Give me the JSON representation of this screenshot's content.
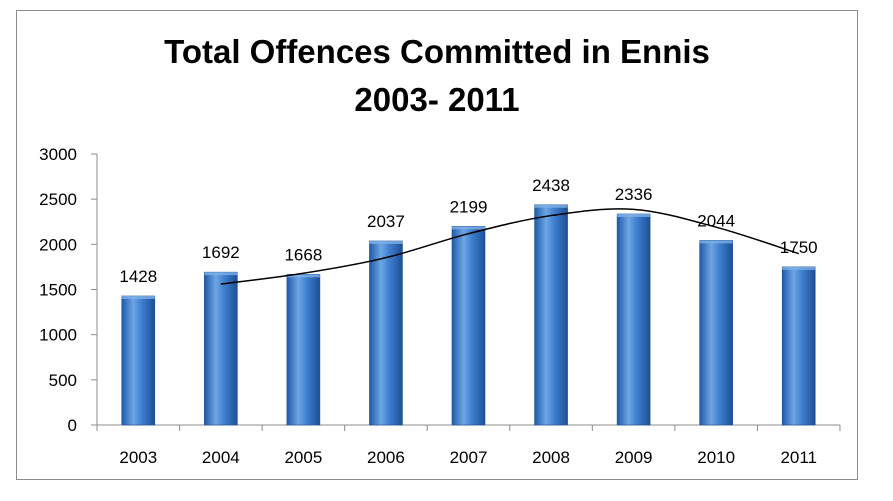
{
  "chart_data": {
    "type": "bar",
    "title_lines": [
      "Total Offences Committed in Ennis",
      "2003- 2011"
    ],
    "categories": [
      "2003",
      "2004",
      "2005",
      "2006",
      "2007",
      "2008",
      "2009",
      "2010",
      "2011"
    ],
    "values": [
      1428,
      1692,
      1668,
      2037,
      2199,
      2438,
      2336,
      2044,
      1750
    ],
    "data_labels": [
      "1428",
      "1692",
      "1668",
      "2037",
      "2199",
      "2438",
      "2336",
      "2044",
      "1750"
    ],
    "ylim": [
      0,
      3000
    ],
    "yticks": [
      0,
      500,
      1000,
      1500,
      2000,
      2500,
      3000
    ],
    "ytick_labels": [
      "0",
      "500",
      "1000",
      "1500",
      "2000",
      "2500",
      "3000"
    ],
    "trendline": {
      "type": "moving-average",
      "period": 2
    },
    "grid": false,
    "legend": "none",
    "colors": {
      "bar_light": "#7fb0e6",
      "bar_main": "#3f7fcf",
      "bar_dark": "#1f5aa8",
      "trendline": "#000000"
    }
  }
}
